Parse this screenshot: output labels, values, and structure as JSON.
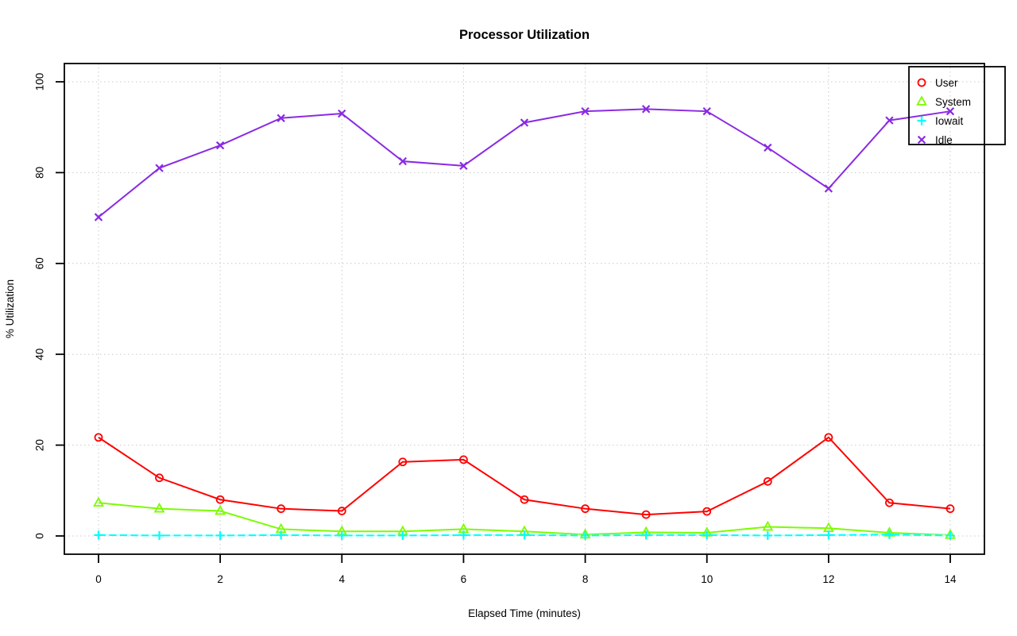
{
  "chart_data": {
    "type": "line",
    "title": "Processor Utilization",
    "xlabel": "Elapsed Time (minutes)",
    "ylabel": "% Utilization",
    "xlim": [
      0,
      14
    ],
    "ylim": [
      0,
      100
    ],
    "xticks": [
      0,
      2,
      4,
      6,
      8,
      10,
      12,
      14
    ],
    "yticks": [
      0,
      20,
      40,
      60,
      80,
      100
    ],
    "grid": "dotted-lightgray-both-axes",
    "legend_position": "top-right",
    "x": [
      0,
      1,
      2,
      3,
      4,
      5,
      6,
      7,
      8,
      9,
      10,
      11,
      12,
      13,
      14
    ],
    "series": [
      {
        "name": "User",
        "color": "#ff0000",
        "marker": "circle",
        "line_style": "solid",
        "values": [
          21.7,
          12.8,
          8.0,
          6.0,
          5.5,
          16.3,
          16.8,
          8.0,
          6.0,
          4.7,
          5.4,
          12.0,
          21.7,
          7.3,
          6.0
        ]
      },
      {
        "name": "System",
        "color": "#7cfc00",
        "marker": "triangle",
        "line_style": "solid",
        "values": [
          7.3,
          6.0,
          5.5,
          1.5,
          1.0,
          1.0,
          1.5,
          1.0,
          0.3,
          0.8,
          0.7,
          2.0,
          1.7,
          0.7,
          0.2
        ]
      },
      {
        "name": "Iowait",
        "color": "#00ffff",
        "marker": "plus",
        "line_style": "dashed",
        "values": [
          0.2,
          0.1,
          0.1,
          0.2,
          0.1,
          0.1,
          0.2,
          0.2,
          0.1,
          0.2,
          0.2,
          0.1,
          0.2,
          0.3,
          0.1
        ]
      },
      {
        "name": "Idle",
        "color": "#8a2be2",
        "marker": "x",
        "line_style": "solid",
        "values": [
          70.2,
          81.0,
          86.0,
          92.0,
          93.0,
          82.5,
          81.5,
          91.0,
          93.5,
          94.0,
          93.5,
          85.5,
          76.5,
          91.5,
          93.5
        ]
      }
    ],
    "colors": {
      "background": "#ffffff",
      "axis": "#000000",
      "grid": "#c9c9c9",
      "iowait_underlay": "#b8ffff"
    }
  }
}
